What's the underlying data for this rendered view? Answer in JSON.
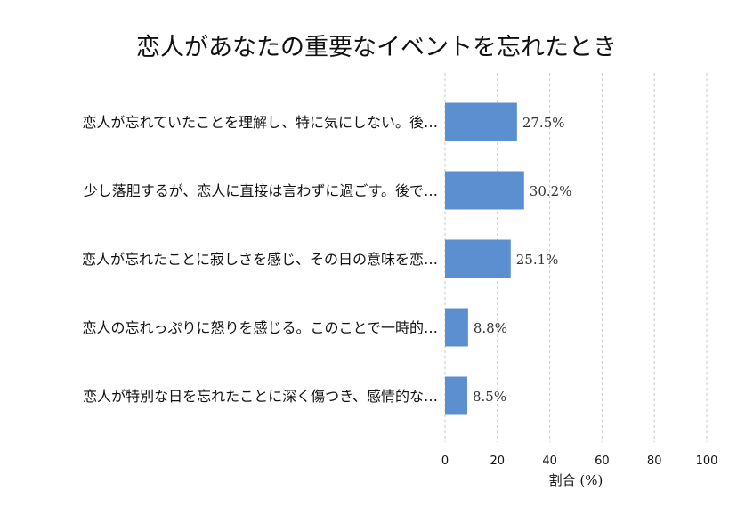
{
  "chart_data": {
    "type": "bar",
    "orientation": "horizontal",
    "title": "恋人があなたの重要なイベントを忘れたとき",
    "xlabel": "割合 (%)",
    "ylabel": "",
    "xlim": [
      0,
      100
    ],
    "xticks": [
      0,
      20,
      40,
      60,
      80,
      100
    ],
    "grid": true,
    "categories": [
      "恋人が忘れていたことを理解し、特に気にしない。後…",
      "少し落胆するが、恋人に直接は言わずに過ごす。後で…",
      "恋人が忘れたことに寂しさを感じ、その日の意味を恋…",
      "恋人の忘れっぷりに怒りを感じる。このことで一時的…",
      "恋人が特別な日を忘れたことに深く傷つき、感情的な…"
    ],
    "values": [
      27.5,
      30.2,
      25.1,
      8.8,
      8.5
    ],
    "value_labels": [
      "27.5%",
      "30.2%",
      "25.1%",
      "8.8%",
      "8.5%"
    ],
    "colors": {
      "bar": "#5b8fd0"
    }
  }
}
